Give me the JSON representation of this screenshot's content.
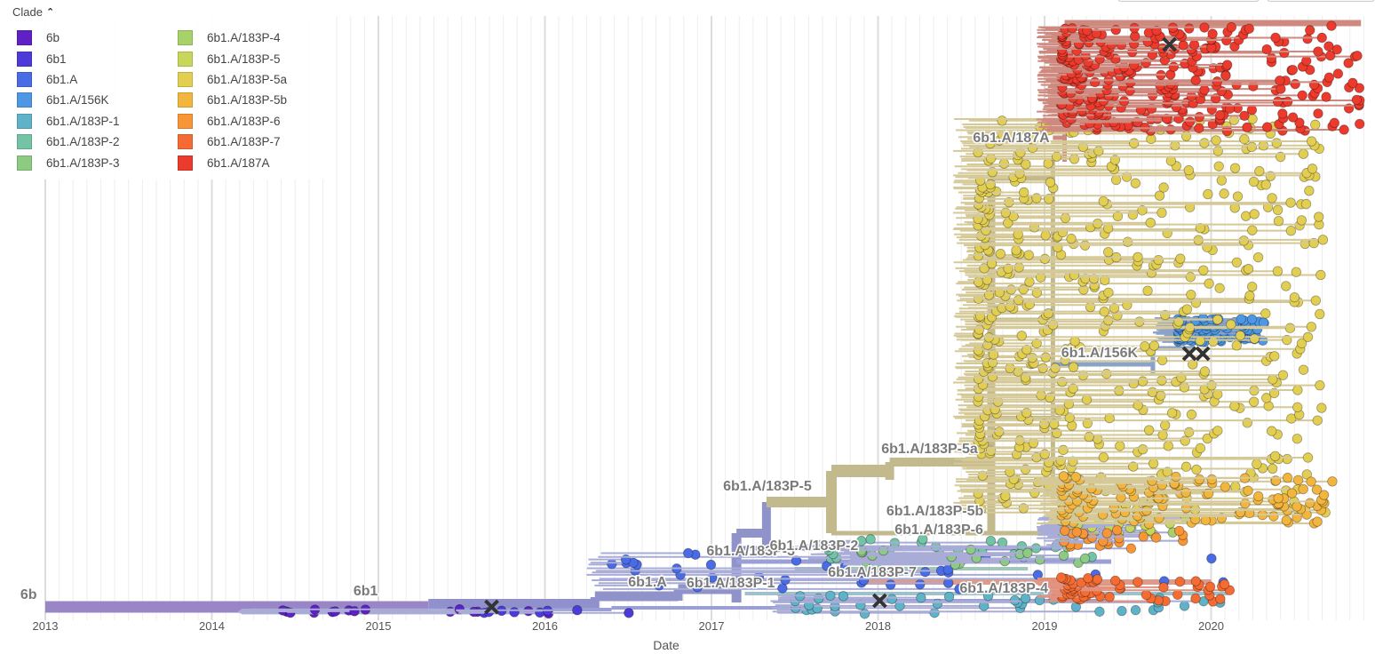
{
  "legend": {
    "title": "Clade",
    "items": [
      {
        "label": "6b",
        "color": "#5e21c6"
      },
      {
        "label": "6b1",
        "color": "#4d3bd9"
      },
      {
        "label": "6b1.A",
        "color": "#4a6be6"
      },
      {
        "label": "6b1.A/156K",
        "color": "#4e97e4"
      },
      {
        "label": "6b1.A/183P-1",
        "color": "#5fb3c8"
      },
      {
        "label": "6b1.A/183P-2",
        "color": "#73c4a7"
      },
      {
        "label": "6b1.A/183P-3",
        "color": "#8dcb83"
      },
      {
        "label": "6b1.A/183P-4",
        "color": "#a9d16a"
      },
      {
        "label": "6b1.A/183P-5",
        "color": "#c8d65b"
      },
      {
        "label": "6b1.A/183P-5a",
        "color": "#e2cf52"
      },
      {
        "label": "6b1.A/183P-5b",
        "color": "#f2b53d"
      },
      {
        "label": "6b1.A/183P-6",
        "color": "#f79537"
      },
      {
        "label": "6b1.A/183P-7",
        "color": "#f66b32"
      },
      {
        "label": "6b1.A/187A",
        "color": "#ec3a2c"
      }
    ]
  },
  "chart_data": {
    "type": "scatter",
    "xlabel": "Date",
    "x_ticks": [
      "2013",
      "2014",
      "2015",
      "2016",
      "2017",
      "2018",
      "2019",
      "2020"
    ],
    "xlim": [
      2013.0,
      2020.95
    ],
    "grid": true,
    "clade_labels": [
      {
        "text": "6b",
        "date": 2012.85
      },
      {
        "text": "6b1",
        "date": 2014.85
      },
      {
        "text": "6b1.A",
        "date": 2016.5
      },
      {
        "text": "6b1.A/183P-1",
        "date": 2016.85
      },
      {
        "text": "6b1.A/183P-3",
        "date": 2016.97
      },
      {
        "text": "6b1.A/183P-2",
        "date": 2017.35
      },
      {
        "text": "6b1.A/183P-7",
        "date": 2017.7
      },
      {
        "text": "6b1.A/183P-5",
        "date": 2017.07
      },
      {
        "text": "6b1.A/183P-5a",
        "date": 2018.02
      },
      {
        "text": "6b1.A/183P-5b",
        "date": 2018.05
      },
      {
        "text": "6b1.A/183P-6",
        "date": 2018.1
      },
      {
        "text": "6b1.A/183P-4",
        "date": 2018.49
      },
      {
        "text": "6b1.A/156K",
        "date": 2019.1
      },
      {
        "text": "6b1.A/187A",
        "date": 2018.57
      }
    ],
    "series": [
      {
        "name": "6b",
        "color": "#5e21c6",
        "x_range": [
          2014.3,
          2016.4
        ],
        "row_range": [
          0.0,
          0.005
        ],
        "count": 16
      },
      {
        "name": "6b1",
        "color": "#4d3bd9",
        "x_range": [
          2015.6,
          2017.2
        ],
        "row_range": [
          0.0,
          0.005
        ],
        "count": 8
      },
      {
        "name": "6b1.A",
        "color": "#4a6be6",
        "x_range": [
          2016.4,
          2020.1
        ],
        "row_range": [
          0.04,
          0.1
        ],
        "count": 40
      },
      {
        "name": "6b1.A/156K",
        "color": "#4e97e4",
        "x_range": [
          2019.8,
          2020.35
        ],
        "row_range": [
          0.455,
          0.495
        ],
        "count": 110
      },
      {
        "name": "6b1.A/183P-1",
        "color": "#5fb3c8",
        "x_range": [
          2017.5,
          2020.1
        ],
        "row_range": [
          0.0,
          0.03
        ],
        "count": 40
      },
      {
        "name": "6b1.A/183P-2",
        "color": "#73c4a7",
        "x_range": [
          2017.7,
          2019.5
        ],
        "row_range": [
          0.09,
          0.125
        ],
        "count": 30
      },
      {
        "name": "6b1.A/183P-3",
        "color": "#8dcb83",
        "x_range": [
          2017.9,
          2019.5
        ],
        "row_range": [
          0.08,
          0.11
        ],
        "count": 20
      },
      {
        "name": "6b1.A/183P-4",
        "color": "#a9d16a",
        "x_range": [
          2019.1,
          2019.9
        ],
        "row_range": [
          0.13,
          0.16
        ],
        "count": 20
      },
      {
        "name": "6b1.A/183P-5",
        "color": "#c8d65b",
        "x_range": [
          2019.1,
          2019.9
        ],
        "row_range": [
          0.135,
          0.155
        ],
        "count": 15
      },
      {
        "name": "6b1.A/183P-5a",
        "color": "#e2cf52",
        "x_range": [
          2018.6,
          2020.7
        ],
        "row_range": [
          0.17,
          0.83
        ],
        "count": 560
      },
      {
        "name": "6b1.A/183P-5b",
        "color": "#f2b53d",
        "x_range": [
          2019.1,
          2020.75
        ],
        "row_range": [
          0.15,
          0.23
        ],
        "count": 120
      },
      {
        "name": "6b1.A/183P-6",
        "color": "#f79537",
        "x_range": [
          2019.1,
          2019.9
        ],
        "row_range": [
          0.11,
          0.14
        ],
        "count": 25
      },
      {
        "name": "6b1.A/183P-7",
        "color": "#f66b32",
        "x_range": [
          2019.1,
          2020.15
        ],
        "row_range": [
          0.02,
          0.06
        ],
        "count": 60
      },
      {
        "name": "6b1.A/187A",
        "color": "#ec3a2c",
        "x_range": [
          2019.1,
          2020.9
        ],
        "row_range": [
          0.81,
          0.985
        ],
        "count": 330
      }
    ]
  }
}
